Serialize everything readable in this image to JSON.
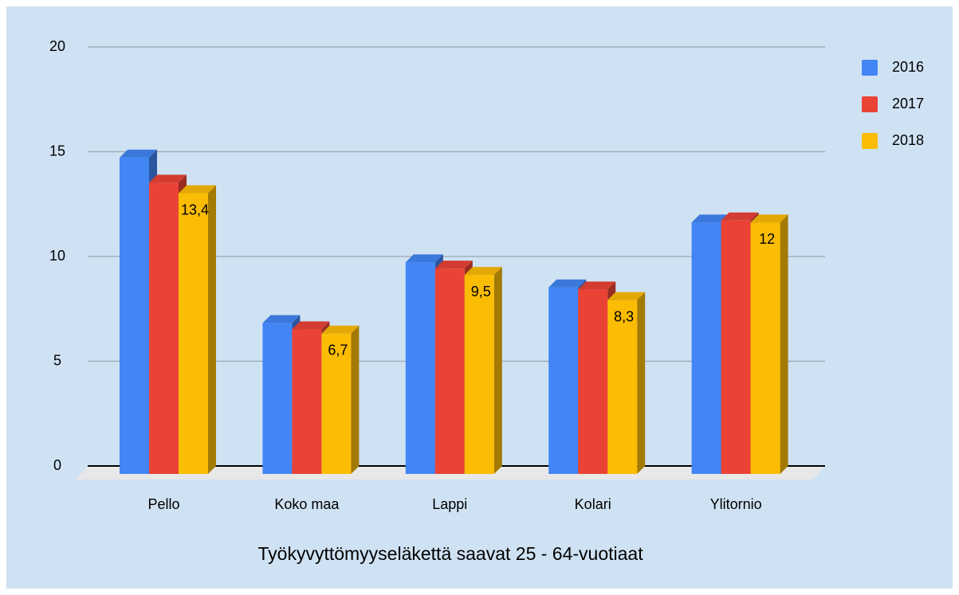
{
  "chart_data": {
    "type": "bar3d",
    "title": "Työkyvyttömyyseläkettä saavat 25 - 64-vuotiaat",
    "categories": [
      "Pello",
      "Koko maa",
      "Lappi",
      "Kolari",
      "Ylitornio"
    ],
    "series": [
      {
        "name": "2016",
        "color": "#4285f4",
        "values": [
          15.1,
          7.2,
          10.1,
          8.9,
          12.0
        ]
      },
      {
        "name": "2017",
        "color": "#ea4335",
        "values": [
          13.9,
          6.9,
          9.8,
          8.8,
          12.1
        ]
      },
      {
        "name": "2018",
        "color": "#fbbc04",
        "values": [
          13.4,
          6.7,
          9.5,
          8.3,
          12
        ],
        "value_labels": [
          "13,4",
          "6,7",
          "9,5",
          "8,3",
          "12"
        ]
      }
    ],
    "ylim": [
      0,
      20
    ],
    "yticks": [
      0,
      5,
      10,
      15,
      20
    ],
    "grid": true,
    "legend": "right"
  }
}
